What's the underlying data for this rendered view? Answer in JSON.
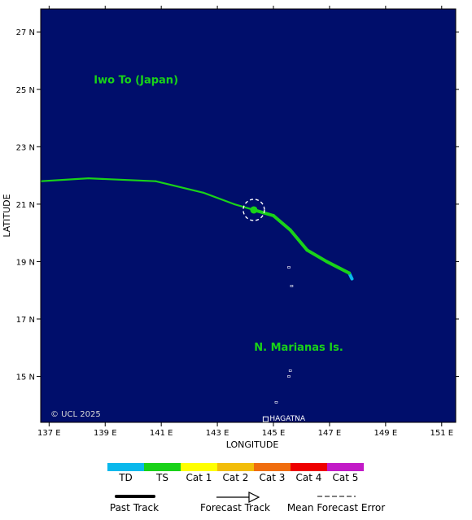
{
  "map": {
    "x_axis_title": "LONGITUDE",
    "y_axis_title": "LATITUDE",
    "lon_range": [
      136.7,
      151.5
    ],
    "lat_range": [
      13.4,
      27.8
    ],
    "lon_ticks": [
      {
        "value": 137,
        "label": "137 E"
      },
      {
        "value": 139,
        "label": "139 E"
      },
      {
        "value": 141,
        "label": "141 E"
      },
      {
        "value": 143,
        "label": "143 E"
      },
      {
        "value": 145,
        "label": "145 E"
      },
      {
        "value": 147,
        "label": "147 E"
      },
      {
        "value": 149,
        "label": "149 E"
      },
      {
        "value": 151,
        "label": "151 E"
      }
    ],
    "lat_ticks": [
      {
        "value": 15,
        "label": "15 N"
      },
      {
        "value": 17,
        "label": "17 N"
      },
      {
        "value": 19,
        "label": "19 N"
      },
      {
        "value": 21,
        "label": "21 N"
      },
      {
        "value": 23,
        "label": "23 N"
      },
      {
        "value": 25,
        "label": "25 N"
      },
      {
        "value": 27,
        "label": "27 N"
      }
    ],
    "place_labels": [
      {
        "text": "Iwo To (Japan)",
        "lon": 140.1,
        "lat": 25.2
      },
      {
        "text": "N. Marianas Is.",
        "lon": 145.9,
        "lat": 15.9
      }
    ],
    "city": {
      "text": "HAGATNA",
      "lon": 144.75,
      "lat": 13.48
    },
    "copyright": "© UCL 2025",
    "colors": {
      "ocean": "#000e6b",
      "td": "#0ab8ec",
      "ts": "#19d219",
      "cat1": "#ffff00",
      "cat2": "#f2bd0a",
      "cat3": "#f06d0e",
      "cat4": "#ee0000",
      "cat5": "#c21ac7"
    },
    "current_position": {
      "lon": 144.3,
      "lat": 20.8
    },
    "track": [
      {
        "lon": 147.8,
        "lat": 18.4,
        "stage": "td"
      },
      {
        "lon": 147.7,
        "lat": 18.6,
        "stage": "td"
      },
      {
        "lon": 146.9,
        "lat": 19.0,
        "stage": "ts"
      },
      {
        "lon": 146.2,
        "lat": 19.4,
        "stage": "ts"
      },
      {
        "lon": 145.6,
        "lat": 20.1,
        "stage": "ts"
      },
      {
        "lon": 145.0,
        "lat": 20.6,
        "stage": "ts"
      },
      {
        "lon": 144.3,
        "lat": 20.8,
        "stage": "ts"
      },
      {
        "lon": 143.6,
        "lat": 21.0,
        "stage": "ts"
      },
      {
        "lon": 142.5,
        "lat": 21.4,
        "stage": "ts"
      },
      {
        "lon": 140.8,
        "lat": 21.8,
        "stage": "ts"
      },
      {
        "lon": 138.4,
        "lat": 21.9,
        "stage": "ts"
      },
      {
        "lon": 136.7,
        "lat": 21.8,
        "stage": "ts"
      }
    ],
    "islands": [
      {
        "lon": 145.55,
        "lat": 18.8
      },
      {
        "lon": 145.65,
        "lat": 18.15
      },
      {
        "lon": 145.6,
        "lat": 15.2
      },
      {
        "lon": 145.55,
        "lat": 15.0
      },
      {
        "lon": 145.1,
        "lat": 14.1
      }
    ]
  },
  "legend": {
    "scale": [
      {
        "label": "TD",
        "color": "#0ab8ec"
      },
      {
        "label": "TS",
        "color": "#19d219"
      },
      {
        "label": "Cat 1",
        "color": "#ffff00"
      },
      {
        "label": "Cat 2",
        "color": "#f2bd0a"
      },
      {
        "label": "Cat 3",
        "color": "#f06d0e"
      },
      {
        "label": "Cat 4",
        "color": "#ee0000"
      },
      {
        "label": "Cat 5",
        "color": "#c21ac7"
      }
    ],
    "past_track": "Past Track",
    "forecast_track": "Forecast Track",
    "mean_forecast_error": "Mean Forecast Error"
  }
}
